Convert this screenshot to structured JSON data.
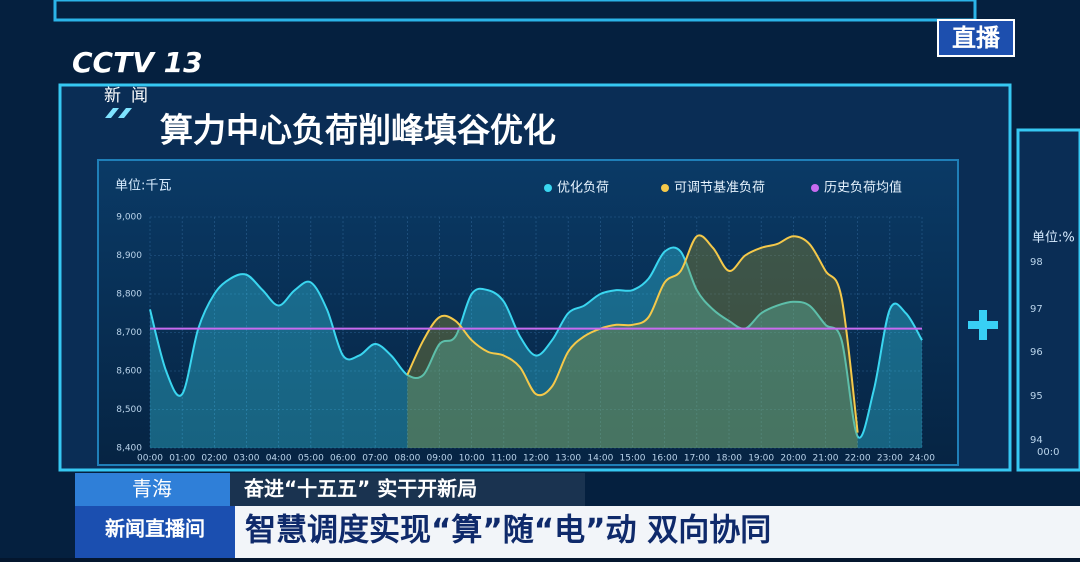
{
  "broadcast": {
    "live_badge": "直播",
    "channel_logo": "CCTV 13",
    "channel_sub": "新闻",
    "region": "青海",
    "headline": "奋进“十五五” 实干开新局",
    "program": "新闻直播间",
    "ticker": "智慧调度实现“算”随“电”动 双向协同"
  },
  "side_panel": {
    "unit": "单位:%",
    "ticks": [
      "98",
      "97",
      "96",
      "95",
      "94"
    ],
    "tick_first": "00:0"
  },
  "chart_data": {
    "type": "line",
    "title": "算力中心负荷削峰填谷优化",
    "y_label": "单位:千瓦",
    "x": [
      0,
      0.5,
      1,
      1.5,
      2,
      2.5,
      3,
      3.5,
      4,
      4.5,
      5,
      5.5,
      6,
      6.5,
      7,
      7.5,
      8,
      8.5,
      9,
      9.5,
      10,
      10.5,
      11,
      11.5,
      12,
      12.5,
      13,
      13.5,
      14,
      14.5,
      15,
      15.5,
      16,
      16.5,
      17,
      17.5,
      18,
      18.5,
      19,
      19.5,
      20,
      20.5,
      21,
      21.5,
      22,
      22.5,
      23,
      23.5,
      24
    ],
    "series": [
      {
        "name": "优化负荷",
        "color": "#3ad6f0",
        "values": [
          8760,
          8600,
          8540,
          8710,
          8800,
          8840,
          8850,
          8810,
          8770,
          8810,
          8830,
          8760,
          8640,
          8640,
          8670,
          8640,
          8590,
          8590,
          8670,
          8690,
          8800,
          8810,
          8780,
          8690,
          8640,
          8680,
          8750,
          8770,
          8800,
          8810,
          8810,
          8840,
          8910,
          8910,
          8810,
          8760,
          8730,
          8710,
          8750,
          8770,
          8780,
          8770,
          8720,
          8680,
          8430,
          8550,
          8760,
          8750,
          8680
        ]
      },
      {
        "name": "可调节基准负荷",
        "color": "#f5c94a",
        "values": [
          null,
          null,
          null,
          null,
          null,
          null,
          null,
          null,
          null,
          null,
          null,
          null,
          null,
          null,
          null,
          null,
          8590,
          8680,
          8740,
          8730,
          8680,
          8650,
          8640,
          8610,
          8540,
          8560,
          8650,
          8690,
          8710,
          8720,
          8720,
          8740,
          8830,
          8860,
          8950,
          8920,
          8860,
          8900,
          8920,
          8930,
          8950,
          8930,
          8860,
          8790,
          8440,
          null,
          null,
          null,
          null
        ]
      },
      {
        "name": "历史负荷均值",
        "color": "#c86bf0",
        "values": [
          8710,
          8710,
          8710,
          8710,
          8710,
          8710,
          8710,
          8710,
          8710,
          8710,
          8710,
          8710,
          8710,
          8710,
          8710,
          8710,
          8710,
          8710,
          8710,
          8710,
          8710,
          8710,
          8710,
          8710,
          8710,
          8710,
          8710,
          8710,
          8710,
          8710,
          8710,
          8710,
          8710,
          8710,
          8710,
          8710,
          8710,
          8710,
          8710,
          8710,
          8710,
          8710,
          8710,
          8710,
          8710,
          8710,
          8710,
          8710,
          8710
        ]
      }
    ],
    "xlim": [
      0,
      24
    ],
    "ylim": [
      8400,
      9000
    ],
    "xticks": [
      {
        "value": 0,
        "label": "00:00"
      },
      {
        "value": 1,
        "label": "01:00"
      },
      {
        "value": 2,
        "label": "02:00"
      },
      {
        "value": 3,
        "label": "03:00"
      },
      {
        "value": 4,
        "label": "04:00"
      },
      {
        "value": 5,
        "label": "05:00"
      },
      {
        "value": 6,
        "label": "06:00"
      },
      {
        "value": 7,
        "label": "07:00"
      },
      {
        "value": 8,
        "label": "08:00"
      },
      {
        "value": 9,
        "label": "09:00"
      },
      {
        "value": 10,
        "label": "10:00"
      },
      {
        "value": 11,
        "label": "11:00"
      },
      {
        "value": 12,
        "label": "12:00"
      },
      {
        "value": 13,
        "label": "13:00"
      },
      {
        "value": 14,
        "label": "14:00"
      },
      {
        "value": 15,
        "label": "15:00"
      },
      {
        "value": 16,
        "label": "16:00"
      },
      {
        "value": 17,
        "label": "17:00"
      },
      {
        "value": 18,
        "label": "18:00"
      },
      {
        "value": 19,
        "label": "19:00"
      },
      {
        "value": 20,
        "label": "20:00"
      },
      {
        "value": 21,
        "label": "21:00"
      },
      {
        "value": 22,
        "label": "22:00"
      },
      {
        "value": 23,
        "label": "23:00"
      },
      {
        "value": 24,
        "label": "24:00"
      }
    ],
    "yticks": [
      {
        "value": 8400,
        "label": "8,400"
      },
      {
        "value": 8500,
        "label": "8,500"
      },
      {
        "value": 8600,
        "label": "8,600"
      },
      {
        "value": 8700,
        "label": "8,700"
      },
      {
        "value": 8800,
        "label": "8,800"
      },
      {
        "value": 8900,
        "label": "8,900"
      },
      {
        "value": 9000,
        "label": "9,000"
      }
    ],
    "grid": true
  }
}
